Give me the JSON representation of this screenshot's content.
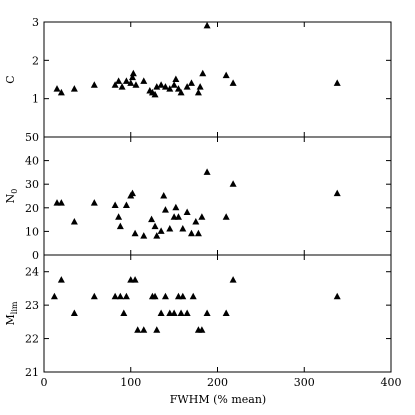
{
  "chart_data": {
    "type": "scatter",
    "xlabel": "FWHM (% mean)",
    "xlim": [
      0,
      400
    ],
    "x_ticks": [
      0,
      100,
      200,
      300,
      400
    ],
    "marker": "filled-triangle",
    "color": "#000000",
    "panels": [
      {
        "ylabel": "C",
        "ylim": [
          0,
          3
        ],
        "y_ticks": [
          1,
          2,
          3
        ],
        "points": [
          [
            15,
            1.25
          ],
          [
            20,
            1.15
          ],
          [
            35,
            1.25
          ],
          [
            58,
            1.35
          ],
          [
            82,
            1.35
          ],
          [
            86,
            1.45
          ],
          [
            90,
            1.3
          ],
          [
            95,
            1.45
          ],
          [
            100,
            1.4
          ],
          [
            102,
            1.55
          ],
          [
            103,
            1.65
          ],
          [
            106,
            1.35
          ],
          [
            115,
            1.45
          ],
          [
            122,
            1.2
          ],
          [
            125,
            1.15
          ],
          [
            128,
            1.1
          ],
          [
            130,
            1.3
          ],
          [
            135,
            1.35
          ],
          [
            140,
            1.3
          ],
          [
            145,
            1.25
          ],
          [
            150,
            1.35
          ],
          [
            152,
            1.5
          ],
          [
            155,
            1.25
          ],
          [
            158,
            1.15
          ],
          [
            165,
            1.3
          ],
          [
            170,
            1.4
          ],
          [
            178,
            1.15
          ],
          [
            180,
            1.3
          ],
          [
            183,
            1.65
          ],
          [
            188,
            2.9
          ],
          [
            210,
            1.6
          ],
          [
            218,
            1.4
          ],
          [
            338,
            1.4
          ]
        ]
      },
      {
        "ylabel": "N₀",
        "ylim": [
          0,
          50
        ],
        "y_ticks": [
          0,
          10,
          20,
          30,
          40,
          50
        ],
        "points": [
          [
            15,
            22
          ],
          [
            20,
            22
          ],
          [
            35,
            14
          ],
          [
            58,
            22
          ],
          [
            82,
            21
          ],
          [
            86,
            16
          ],
          [
            88,
            12
          ],
          [
            95,
            21
          ],
          [
            100,
            25
          ],
          [
            102,
            26
          ],
          [
            105,
            9
          ],
          [
            115,
            8
          ],
          [
            124,
            15
          ],
          [
            128,
            12
          ],
          [
            130,
            8
          ],
          [
            135,
            10
          ],
          [
            138,
            25
          ],
          [
            140,
            19
          ],
          [
            145,
            11
          ],
          [
            150,
            16
          ],
          [
            152,
            20
          ],
          [
            155,
            16
          ],
          [
            160,
            11
          ],
          [
            165,
            18
          ],
          [
            170,
            9
          ],
          [
            175,
            14
          ],
          [
            178,
            9
          ],
          [
            182,
            16
          ],
          [
            188,
            35
          ],
          [
            210,
            16
          ],
          [
            218,
            30
          ],
          [
            338,
            26
          ]
        ]
      },
      {
        "ylabel": "Mlim",
        "ylim": [
          21,
          24.5
        ],
        "y_ticks": [
          21,
          22,
          23,
          24
        ],
        "points": [
          [
            12,
            23.25
          ],
          [
            20,
            23.75
          ],
          [
            35,
            22.75
          ],
          [
            58,
            23.25
          ],
          [
            82,
            23.25
          ],
          [
            88,
            23.25
          ],
          [
            92,
            22.75
          ],
          [
            95,
            23.25
          ],
          [
            100,
            23.75
          ],
          [
            105,
            23.75
          ],
          [
            108,
            22.25
          ],
          [
            115,
            22.25
          ],
          [
            125,
            23.25
          ],
          [
            128,
            23.25
          ],
          [
            130,
            22.25
          ],
          [
            135,
            22.75
          ],
          [
            140,
            23.25
          ],
          [
            145,
            22.75
          ],
          [
            150,
            22.75
          ],
          [
            155,
            23.25
          ],
          [
            158,
            22.75
          ],
          [
            160,
            23.25
          ],
          [
            165,
            22.75
          ],
          [
            172,
            23.25
          ],
          [
            178,
            22.25
          ],
          [
            182,
            22.25
          ],
          [
            188,
            22.75
          ],
          [
            210,
            22.75
          ],
          [
            218,
            23.75
          ],
          [
            338,
            23.25
          ]
        ]
      }
    ]
  }
}
